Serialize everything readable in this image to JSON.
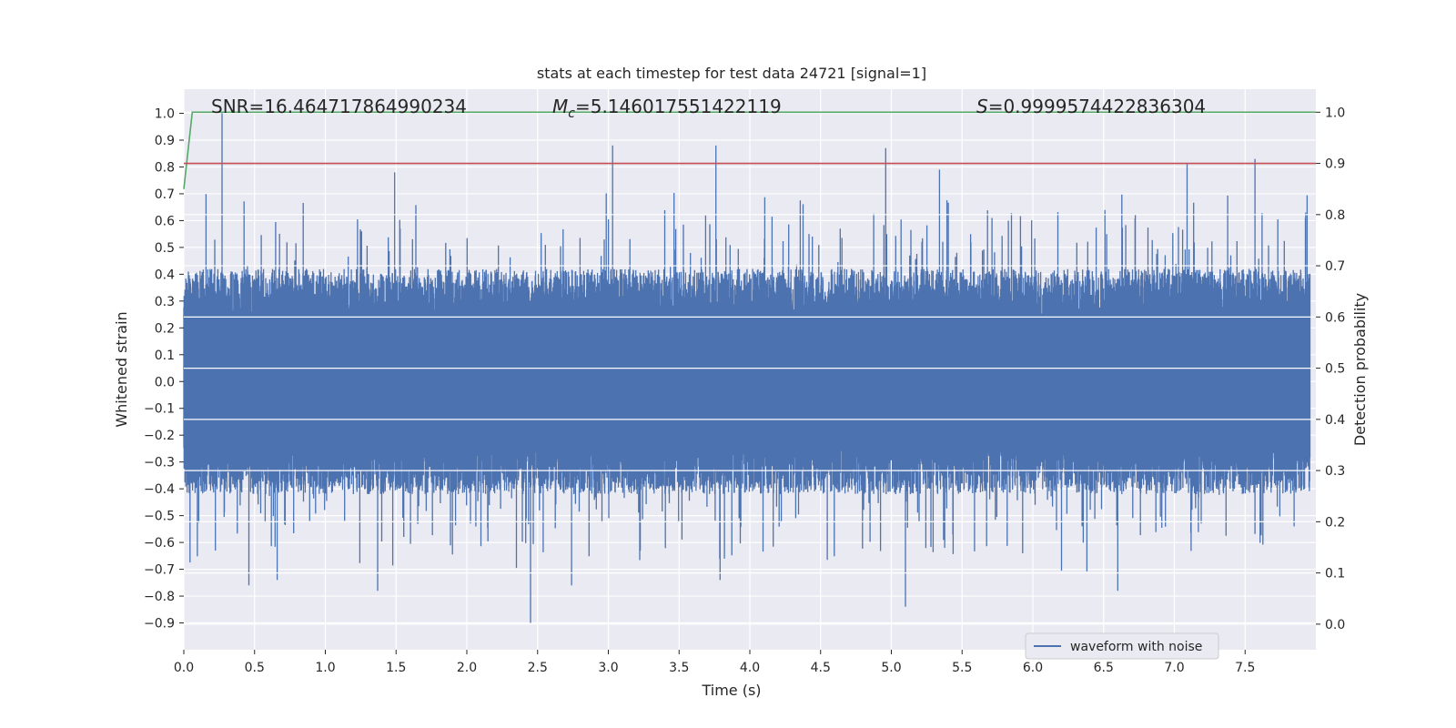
{
  "chart_data": {
    "type": "line",
    "title": "stats at each timestep for test data 24721 [signal=1]",
    "xlabel": "Time (s)",
    "ylabel": "Whitened strain",
    "ylabel_right": "Detection probability",
    "xlim": [
      0.0,
      8.0
    ],
    "ylim": [
      -1.0,
      1.09
    ],
    "ylim_right": [
      -0.05,
      1.045
    ],
    "x_ticks": [
      "0.0",
      "0.5",
      "1.0",
      "1.5",
      "2.0",
      "2.5",
      "3.0",
      "3.5",
      "4.0",
      "4.5",
      "5.0",
      "5.5",
      "6.0",
      "6.5",
      "7.0",
      "7.5"
    ],
    "y_ticks": [
      "1.0",
      "0.9",
      "0.8",
      "0.7",
      "0.6",
      "0.5",
      "0.4",
      "0.3",
      "0.2",
      "0.1",
      "0.0",
      "−0.1",
      "−0.2",
      "−0.3",
      "−0.4",
      "−0.5",
      "−0.6",
      "−0.7",
      "−0.8",
      "−0.9"
    ],
    "y_ticks_right": [
      "1.0",
      "0.9",
      "0.8",
      "0.7",
      "0.6",
      "0.5",
      "0.4",
      "0.3",
      "0.2",
      "0.1",
      "0.0"
    ],
    "grid": true,
    "legend_position": "lower-right",
    "series": [
      {
        "name": "waveform with noise",
        "axis": "left",
        "color": "#4c72b0",
        "description_kind": "dense noisy strain, envelope approx ±0.4",
        "sample_count": 4000,
        "envelope": 0.42,
        "notable_peaks": [
          {
            "x": 0.27,
            "y": 1.0
          },
          {
            "x": 3.03,
            "y": 0.88
          },
          {
            "x": 3.76,
            "y": 0.88
          },
          {
            "x": 4.96,
            "y": 0.87
          },
          {
            "x": 7.57,
            "y": 0.83
          },
          {
            "x": 7.09,
            "y": 0.81
          },
          {
            "x": 1.49,
            "y": 0.78
          },
          {
            "x": 5.34,
            "y": 0.79
          },
          {
            "x": 2.45,
            "y": -0.9
          },
          {
            "x": 5.1,
            "y": -0.84
          },
          {
            "x": 1.37,
            "y": -0.78
          },
          {
            "x": 6.6,
            "y": -0.78
          },
          {
            "x": 0.46,
            "y": -0.76
          },
          {
            "x": 0.66,
            "y": -0.74
          },
          {
            "x": 3.79,
            "y": -0.74
          },
          {
            "x": 2.74,
            "y": -0.76
          }
        ]
      },
      {
        "name": "",
        "axis": "right",
        "color": "#55a868",
        "x": [
          0.0,
          0.06,
          8.0
        ],
        "y": [
          0.85,
          1.0,
          1.0
        ]
      },
      {
        "name": "",
        "axis": "right",
        "color": "#c44e52",
        "x": [
          0.0,
          8.0
        ],
        "y": [
          0.9,
          0.9
        ]
      }
    ],
    "annotations": {
      "snr": "SNR=16.464717864990234",
      "mc_symbol": "M",
      "mc_sub": "c",
      "mc_value": "=5.146017551422119",
      "s_symbol": "S",
      "s_value": "=0.9999574422836304"
    },
    "colors": {
      "plot_background": "#eaeaf2",
      "grid": "#ffffff",
      "text": "#262626"
    }
  }
}
